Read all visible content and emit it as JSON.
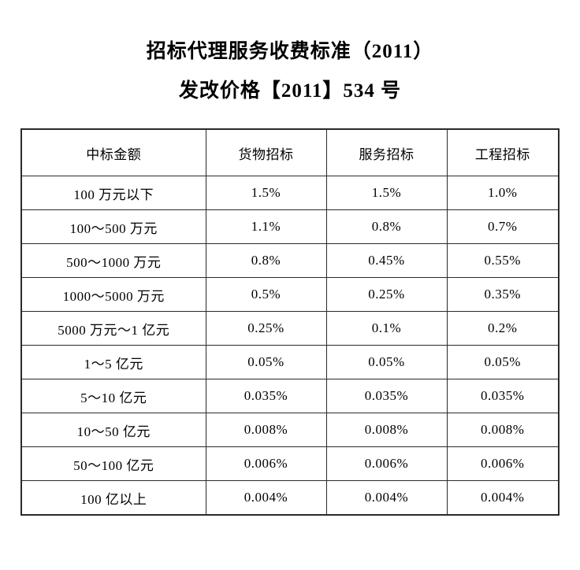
{
  "document": {
    "title": "招标代理服务收费标准（2011）",
    "subtitle": "发改价格【2011】534 号"
  },
  "table": {
    "headers": [
      "中标金额",
      "货物招标",
      "服务招标",
      "工程招标"
    ],
    "rows": [
      [
        "100 万元以下",
        "1.5%",
        "1.5%",
        "1.0%"
      ],
      [
        "100～500 万元",
        "1.1%",
        "0.8%",
        "0.7%"
      ],
      [
        "500～1000 万元",
        "0.8%",
        "0.45%",
        "0.55%"
      ],
      [
        "1000～5000 万元",
        "0.5%",
        "0.25%",
        "0.35%"
      ],
      [
        "5000 万元～1 亿元",
        "0.25%",
        "0.1%",
        "0.2%"
      ],
      [
        "1～5 亿元",
        "0.05%",
        "0.05%",
        "0.05%"
      ],
      [
        "5～10 亿元",
        "0.035%",
        "0.035%",
        "0.035%"
      ],
      [
        "10～50 亿元",
        "0.008%",
        "0.008%",
        "0.008%"
      ],
      [
        "50～100 亿元",
        "0.006%",
        "0.006%",
        "0.006%"
      ],
      [
        "100 亿以上",
        "0.004%",
        "0.004%",
        "0.004%"
      ]
    ]
  },
  "colors": {
    "border": "#2a2a2a",
    "text": "#000000",
    "background": "#ffffff"
  }
}
